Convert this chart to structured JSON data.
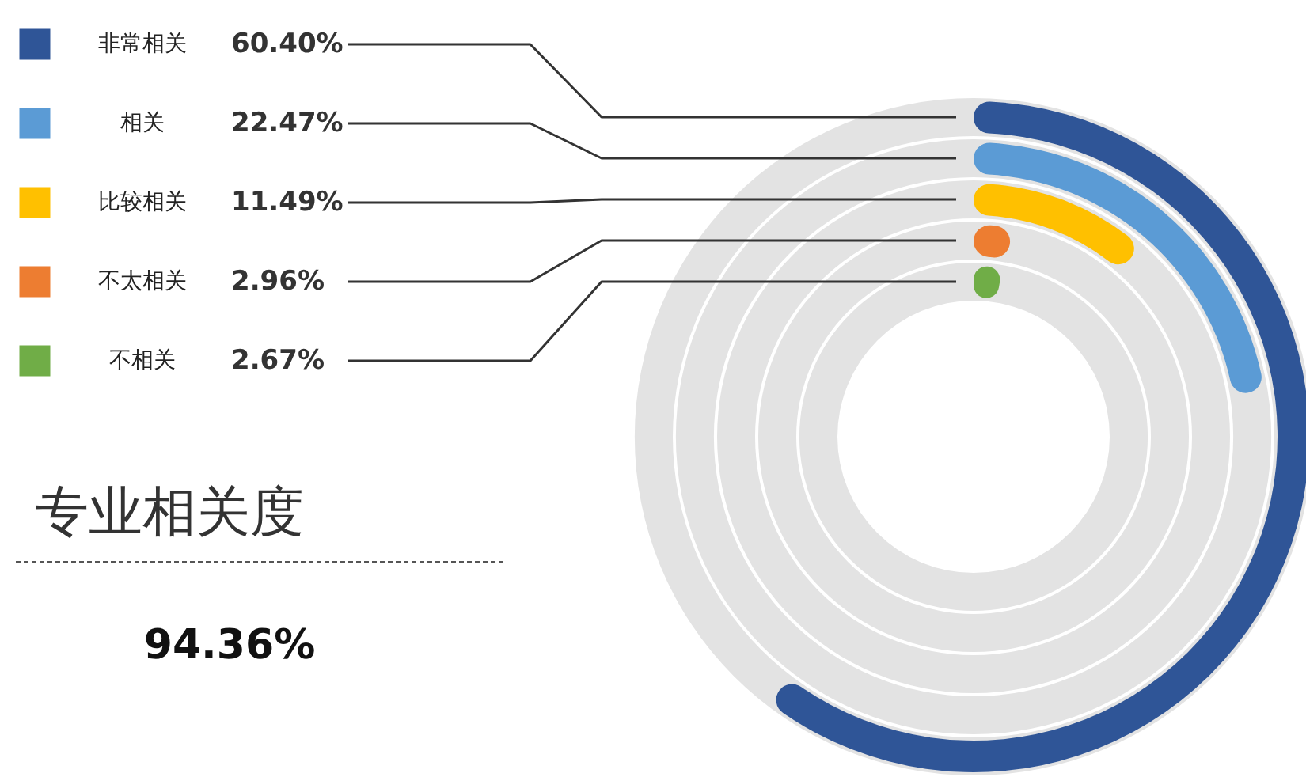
{
  "chart_data": {
    "type": "other",
    "title": "专业相关度",
    "categories": [
      "非常相关",
      "相关",
      "比较相关",
      "不太相关",
      "不相关"
    ],
    "values": [
      60.4,
      22.47,
      11.49,
      2.96,
      2.67
    ],
    "value_labels": [
      "60.40%",
      "22.47%",
      "11.49%",
      "2.96%",
      "2.67%"
    ],
    "colors": [
      "#2f5597",
      "#5b9bd5",
      "#ffc000",
      "#ed7d31",
      "#70ad47"
    ],
    "annotations": [
      "94.36%"
    ]
  }
}
